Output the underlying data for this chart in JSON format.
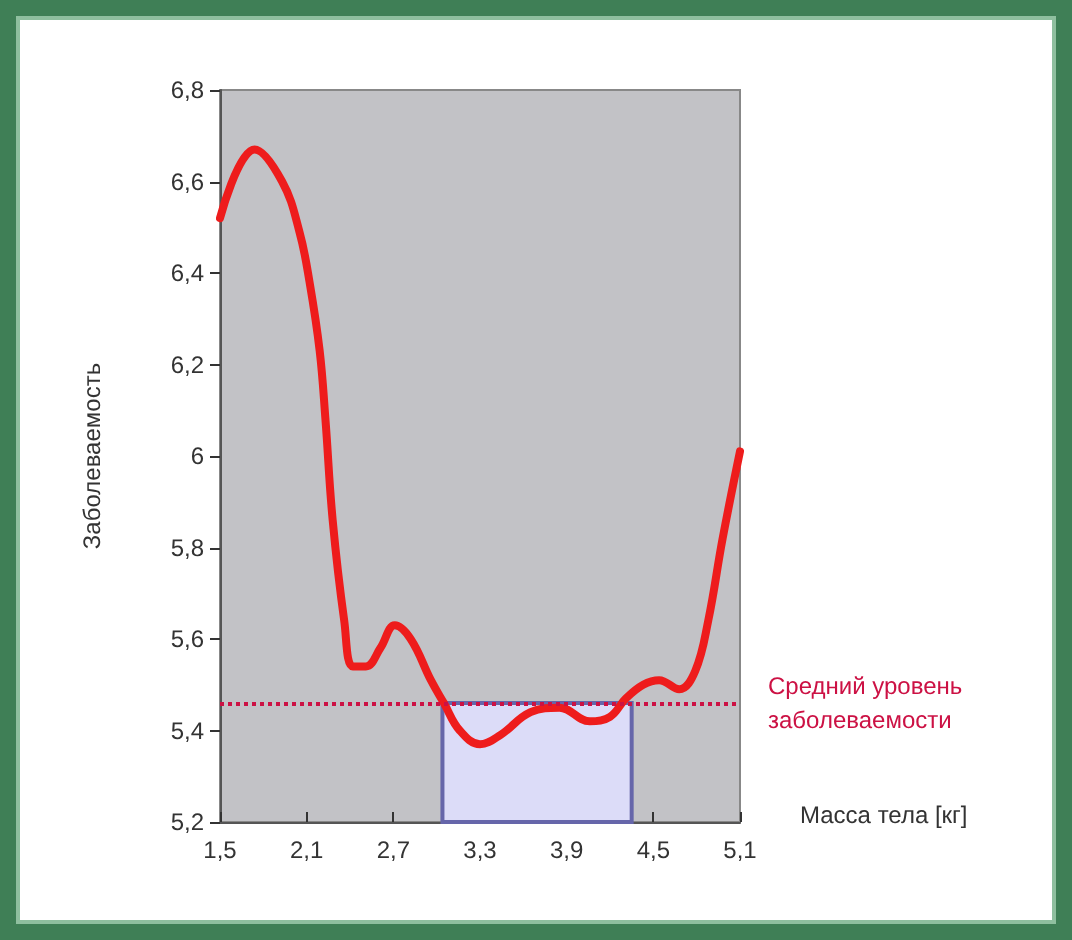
{
  "chart_data": {
    "type": "line",
    "xlabel": "Масса тела [кг]",
    "ylabel": "Заболеваемость",
    "x": [
      1.5,
      1.74,
      1.93,
      2.05,
      2.12,
      2.19,
      2.23,
      2.28,
      2.36,
      2.42,
      2.51,
      2.61,
      2.71,
      2.82,
      2.96,
      3.05,
      3.16,
      3.3,
      3.44,
      3.65,
      3.85,
      4.06,
      4.2,
      4.31,
      4.43,
      4.54,
      4.68,
      4.79,
      4.88,
      4.98,
      5.1
    ],
    "series": [
      {
        "color": "#ee1c1c",
        "values": [
          6.52,
          6.67,
          6.6,
          6.49,
          6.38,
          6.23,
          6.08,
          5.86,
          5.64,
          5.54,
          5.54,
          5.58,
          5.63,
          5.6,
          5.51,
          5.46,
          5.4,
          5.37,
          5.39,
          5.44,
          5.45,
          5.42,
          5.43,
          5.47,
          5.5,
          5.51,
          5.49,
          5.53,
          5.64,
          5.82,
          6.01
        ]
      }
    ],
    "xlim": [
      1.5,
      5.1
    ],
    "ylim": [
      5.2,
      6.8
    ],
    "xticks": [
      {
        "value": 1.5,
        "label": "1,5"
      },
      {
        "value": 2.1,
        "label": "2,1"
      },
      {
        "value": 2.7,
        "label": "2,7"
      },
      {
        "value": 3.3,
        "label": "3,3"
      },
      {
        "value": 3.9,
        "label": "3,9"
      },
      {
        "value": 4.5,
        "label": "4,5"
      },
      {
        "value": 5.1,
        "label": "5,1"
      }
    ],
    "yticks": [
      {
        "value": 5.2,
        "label": "5,2"
      },
      {
        "value": 5.4,
        "label": "5,4"
      },
      {
        "value": 5.6,
        "label": "5,6"
      },
      {
        "value": 5.8,
        "label": "5,8"
      },
      6,
      {
        "value": 6.2,
        "label": "6,2"
      },
      {
        "value": 6.4,
        "label": "6,4"
      },
      {
        "value": 6.6,
        "label": "6,6"
      },
      {
        "value": 6.8,
        "label": "6,8"
      }
    ],
    "ref_lines": [
      {
        "axis": "y",
        "value": 5.46,
        "label": "Средний уровень заболеваемости",
        "color": "#cc1144",
        "line_style": "dotted"
      }
    ],
    "bands": [
      {
        "axis": "x",
        "from": 3.04,
        "to": 4.35,
        "color": "#dcdcf8"
      }
    ],
    "marker": "none",
    "line_style": "solid"
  }
}
